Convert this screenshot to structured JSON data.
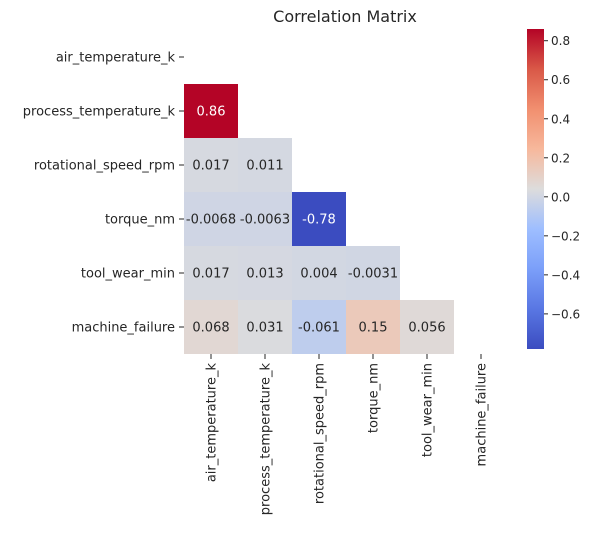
{
  "chart_data": {
    "type": "heatmap",
    "title": "Correlation Matrix",
    "variables": [
      "air_temperature_k",
      "process_temperature_k",
      "rotational_speed_rpm",
      "torque_nm",
      "tool_wear_min",
      "machine_failure"
    ],
    "mask": "upper-triangle-and-diagonal",
    "cells": [
      {
        "row": 1,
        "col": 0,
        "value": 0.86,
        "label": "0.86"
      },
      {
        "row": 2,
        "col": 0,
        "value": 0.017,
        "label": "0.017"
      },
      {
        "row": 2,
        "col": 1,
        "value": 0.011,
        "label": "0.011"
      },
      {
        "row": 3,
        "col": 0,
        "value": -0.0068,
        "label": "-0.0068"
      },
      {
        "row": 3,
        "col": 1,
        "value": -0.0063,
        "label": "-0.0063"
      },
      {
        "row": 3,
        "col": 2,
        "value": -0.78,
        "label": "-0.78"
      },
      {
        "row": 4,
        "col": 0,
        "value": 0.017,
        "label": "0.017"
      },
      {
        "row": 4,
        "col": 1,
        "value": 0.013,
        "label": "0.013"
      },
      {
        "row": 4,
        "col": 2,
        "value": 0.004,
        "label": "0.004"
      },
      {
        "row": 4,
        "col": 3,
        "value": -0.0031,
        "label": "-0.0031"
      },
      {
        "row": 5,
        "col": 0,
        "value": 0.068,
        "label": "0.068"
      },
      {
        "row": 5,
        "col": 1,
        "value": 0.031,
        "label": "0.031"
      },
      {
        "row": 5,
        "col": 2,
        "value": -0.061,
        "label": "-0.061"
      },
      {
        "row": 5,
        "col": 3,
        "value": 0.15,
        "label": "0.15"
      },
      {
        "row": 5,
        "col": 4,
        "value": 0.056,
        "label": "0.056"
      }
    ],
    "colormap": "coolwarm",
    "color_range": [
      -0.78,
      0.86
    ],
    "colorbar_ticks": [
      0.8,
      0.6,
      0.4,
      0.2,
      0.0,
      -0.2,
      -0.4,
      -0.6
    ],
    "colorbar_tick_labels": [
      "0.8",
      "0.6",
      "0.4",
      "0.2",
      "0.0",
      "−0.2",
      "−0.4",
      "−0.6"
    ]
  }
}
